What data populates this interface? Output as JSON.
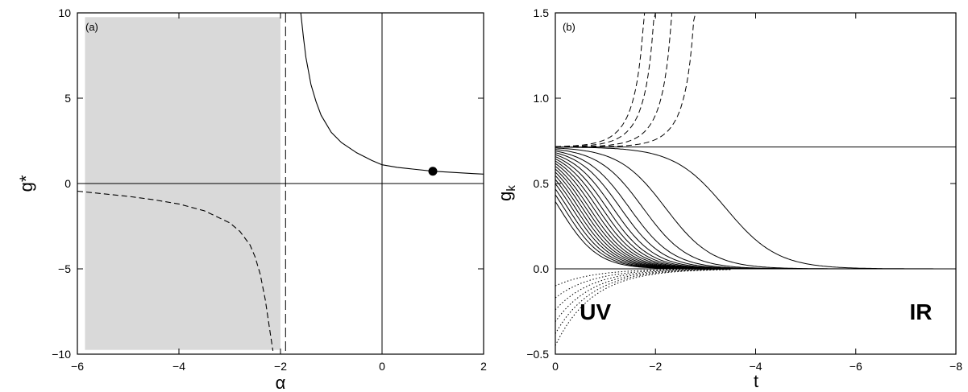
{
  "chart_data": [
    {
      "type": "line",
      "panel_label": "(a)",
      "xlabel": "α",
      "ylabel": "g*",
      "xlim": [
        -6,
        2
      ],
      "ylim": [
        -10,
        10
      ],
      "xticks": [
        -6,
        -4,
        -2,
        0,
        2
      ],
      "yticks": [
        -10,
        -5,
        0,
        5,
        10
      ],
      "xtick_labels": [
        "−6",
        "−4",
        "−2",
        "0",
        "2"
      ],
      "ytick_labels": [
        "−10",
        "−5",
        "0",
        "5",
        "10"
      ],
      "grid": false,
      "shaded_region": {
        "x": [
          -5.85,
          -2.0
        ],
        "y": [
          -9.75,
          9.75
        ],
        "color": "#d9d9d9"
      },
      "vertical_lines": [
        {
          "x": -1.9,
          "style": "dashed"
        },
        {
          "x": 0,
          "style": "solid"
        }
      ],
      "horizontal_lines": [
        {
          "y": 0,
          "style": "solid"
        }
      ],
      "series": [
        {
          "style": "solid",
          "x": [
            -1.6,
            -1.55,
            -1.5,
            -1.4,
            -1.3,
            -1.2,
            -1.0,
            -0.8,
            -0.5,
            -0.2,
            0.0,
            0.3,
            0.6,
            1.0,
            1.4,
            1.8,
            2.0
          ],
          "y": [
            10.0,
            8.6,
            7.4,
            5.8,
            4.8,
            4.0,
            3.0,
            2.4,
            1.8,
            1.35,
            1.1,
            0.95,
            0.85,
            0.72,
            0.65,
            0.58,
            0.55
          ]
        },
        {
          "style": "dashed",
          "x": [
            -6.0,
            -5.5,
            -5.0,
            -4.5,
            -4.0,
            -3.5,
            -3.0,
            -2.8,
            -2.6,
            -2.5,
            -2.4,
            -2.3,
            -2.2,
            -2.15
          ],
          "y": [
            -0.45,
            -0.6,
            -0.75,
            -0.95,
            -1.2,
            -1.6,
            -2.3,
            -2.8,
            -3.6,
            -4.3,
            -5.3,
            -6.8,
            -8.8,
            -9.8
          ]
        }
      ],
      "points": [
        {
          "x": 1.0,
          "y": 0.72
        }
      ]
    },
    {
      "type": "line",
      "panel_label": "(b)",
      "xlabel": "t",
      "ylabel": "gk",
      "ylabel_main": "g",
      "ylabel_sub": "k",
      "xlim": [
        0,
        -8
      ],
      "ylim": [
        -0.5,
        1.5
      ],
      "xticks": [
        0,
        -2,
        -4,
        -6,
        -8
      ],
      "yticks": [
        -0.5,
        0.0,
        0.5,
        1.0,
        1.5
      ],
      "xtick_labels": [
        "0",
        "−2",
        "−4",
        "−6",
        "−8"
      ],
      "ytick_labels": [
        "−0.5",
        "0.0",
        "0.5",
        "1.0",
        "1.5"
      ],
      "grid": false,
      "fixed_point": 0.7143,
      "annotations": [
        {
          "text": "UV",
          "x": -0.8,
          "y": -0.25
        },
        {
          "text": "IR",
          "x": -7.3,
          "y": -0.25
        }
      ],
      "families": [
        {
          "style": "dashed",
          "t_blowup": [
            -2.0,
            -2.2,
            -2.55,
            -3.0
          ]
        },
        {
          "style": "solid",
          "t_half": [
            -3.4,
            -2.2,
            -1.75,
            -1.48,
            -1.3,
            -1.15,
            -1.03,
            -0.93,
            -0.84,
            -0.76,
            -0.68,
            -0.61,
            -0.54,
            -0.47,
            -0.4,
            -0.33,
            -0.25,
            -0.17,
            -0.08
          ]
        },
        {
          "style": "dotted",
          "g0": [
            -0.1,
            -0.17,
            -0.24,
            -0.31,
            -0.38,
            -0.45
          ]
        }
      ]
    }
  ]
}
